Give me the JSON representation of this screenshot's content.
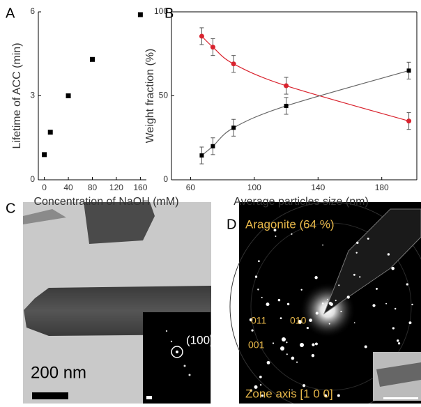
{
  "chart_data": [
    {
      "type": "scatter",
      "panel": "A",
      "x_label": "Concentration of NaOH (mM)",
      "y_label": "Lifetime of ACC (min)",
      "x": [
        0,
        10,
        40,
        80,
        160
      ],
      "values": [
        0.9,
        1.7,
        3.0,
        4.3,
        5.9
      ],
      "color": "#000000",
      "xlim": [
        -10,
        170
      ],
      "ylim": [
        0,
        6
      ],
      "xticks": [
        0,
        40,
        80,
        120,
        160
      ],
      "yticks": [
        0,
        3,
        6
      ],
      "box": false
    },
    {
      "type": "line",
      "panel": "B",
      "x_label": "Average particles size (nm)",
      "y_label": "Weight fraction (%)",
      "x": [
        67,
        74,
        87,
        120,
        197
      ],
      "series": [
        {
          "color": "#d9232e",
          "values": [
            85.5,
            79,
            69,
            56,
            35
          ],
          "errors": [
            5,
            5,
            5,
            5,
            5
          ]
        },
        {
          "color": "#000000",
          "values": [
            14.5,
            20,
            31,
            44,
            65
          ],
          "errors": [
            5,
            5,
            5,
            5,
            5
          ]
        }
      ],
      "xlim": [
        48,
        202
      ],
      "ylim": [
        0,
        100
      ],
      "xticks": [
        60,
        100,
        140,
        180
      ],
      "yticks": [
        0,
        50,
        100
      ],
      "box": true
    }
  ],
  "figure_panels": [
    {
      "label": "C",
      "scale_bar": "200 nm",
      "inset_label": "(100)"
    },
    {
      "label": "D",
      "title": "Aragonite (64 %)",
      "indices": [
        "011",
        "010",
        "001"
      ],
      "zone_axis": "Zone axis [1 0 0]"
    }
  ]
}
